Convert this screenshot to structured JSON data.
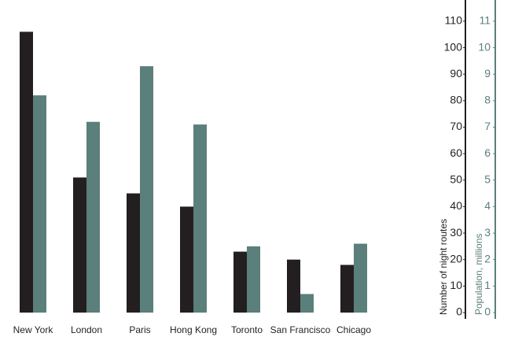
{
  "chart_data": {
    "type": "bar",
    "categories": [
      "New York",
      "London",
      "Paris",
      "Hong Kong",
      "Toronto",
      "San Francisco",
      "Chicago"
    ],
    "series": [
      {
        "color": "#231f20",
        "values": [
          106,
          51,
          45,
          40,
          23,
          20,
          18
        ]
      },
      {
        "color": "#5b7f7a",
        "axis": "y2",
        "values": [
          8.2,
          7.2,
          9.3,
          7.1,
          2.5,
          0.7,
          2.6
        ]
      }
    ],
    "ylabel": "Number of night routes",
    "y2label": "Population, millions",
    "ylim": [
      0,
      118
    ],
    "yticks": [
      0,
      10,
      20,
      30,
      40,
      50,
      60,
      70,
      80,
      90,
      100,
      110
    ],
    "y2lim": [
      0,
      11.8
    ],
    "y2ticks": [
      0,
      1,
      2,
      3,
      4,
      5,
      6,
      7,
      8,
      9,
      10,
      11
    ],
    "grid": false
  }
}
